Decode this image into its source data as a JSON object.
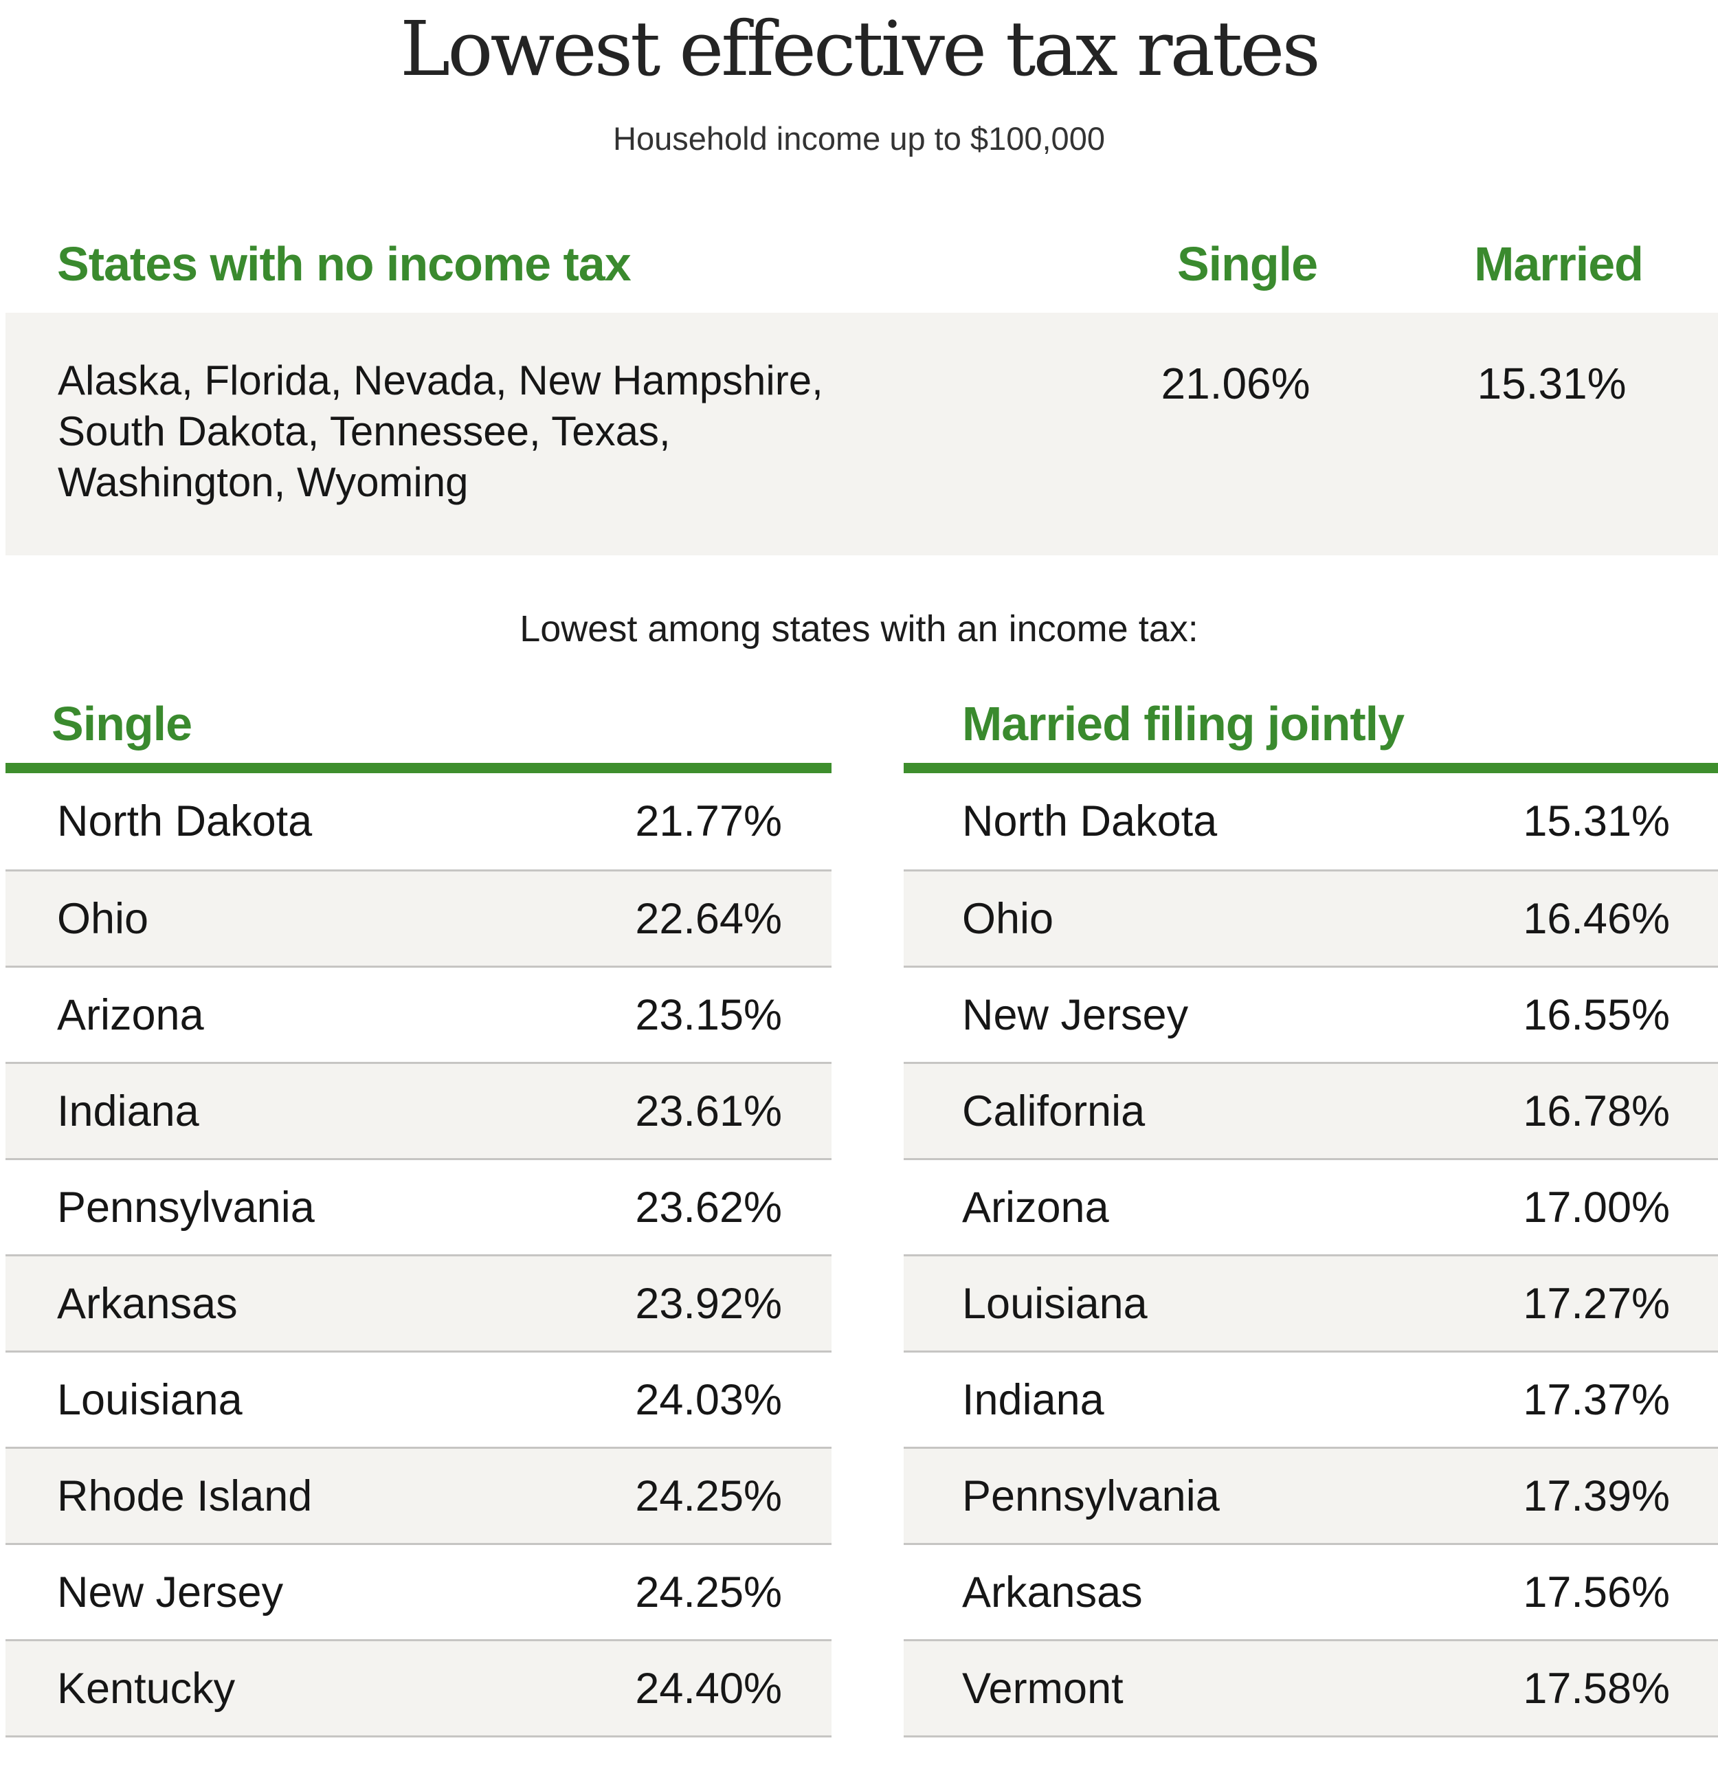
{
  "title": "Lowest effective tax rates",
  "subtitle": "Household income up to $100,000",
  "no_tax_section": {
    "header": "States with no income tax",
    "col_single": "Single",
    "col_married": "Married",
    "states_lines": [
      "Alaska, Florida, Nevada, New Hampshire,",
      "South Dakota, Tennessee, Texas,",
      "Washington, Wyoming"
    ],
    "single_value": "21.06%",
    "married_value": "15.31%"
  },
  "note": "Lowest among states with an income tax:",
  "tables": [
    {
      "header": "Single",
      "rows": [
        [
          "North Dakota",
          "21.77%"
        ],
        [
          "Ohio",
          "22.64%"
        ],
        [
          "Arizona",
          "23.15%"
        ],
        [
          "Indiana",
          "23.61%"
        ],
        [
          "Pennsylvania",
          "23.62%"
        ],
        [
          "Arkansas",
          "23.92%"
        ],
        [
          "Louisiana",
          "24.03%"
        ],
        [
          "Rhode Island",
          "24.25%"
        ],
        [
          "New Jersey",
          "24.25%"
        ],
        [
          "Kentucky",
          "24.40%"
        ]
      ]
    },
    {
      "header": "Married filing jointly",
      "rows": [
        [
          "North Dakota",
          "15.31%"
        ],
        [
          "Ohio",
          "16.46%"
        ],
        [
          "New Jersey",
          "16.55%"
        ],
        [
          "California",
          "16.78%"
        ],
        [
          "Arizona",
          "17.00%"
        ],
        [
          "Louisiana",
          "17.27%"
        ],
        [
          "Indiana",
          "17.37%"
        ],
        [
          "Pennsylvania",
          "17.39%"
        ],
        [
          "Arkansas",
          "17.56%"
        ],
        [
          "Vermont",
          "17.58%"
        ]
      ]
    }
  ],
  "chart_data": {
    "type": "table",
    "title": "Lowest effective tax rates",
    "subtitle": "Household income up to $100,000",
    "sections": [
      {
        "title": "States with no income tax",
        "columns": [
          "Single",
          "Married"
        ],
        "states": "Alaska, Florida, Nevada, New Hampshire, South Dakota, Tennessee, Texas, Washington, Wyoming",
        "values": [
          "21.06%",
          "15.31%"
        ]
      },
      {
        "title": "Single",
        "note": "Lowest among states with an income tax:",
        "rows": [
          [
            "North Dakota",
            "21.77%"
          ],
          [
            "Ohio",
            "22.64%"
          ],
          [
            "Arizona",
            "23.15%"
          ],
          [
            "Indiana",
            "23.61%"
          ],
          [
            "Pennsylvania",
            "23.62%"
          ],
          [
            "Arkansas",
            "23.92%"
          ],
          [
            "Louisiana",
            "24.03%"
          ],
          [
            "Rhode Island",
            "24.25%"
          ],
          [
            "New Jersey",
            "24.25%"
          ],
          [
            "Kentucky",
            "24.40%"
          ]
        ]
      },
      {
        "title": "Married filing jointly",
        "note": "Lowest among states with an income tax:",
        "rows": [
          [
            "North Dakota",
            "15.31%"
          ],
          [
            "Ohio",
            "16.46%"
          ],
          [
            "New Jersey",
            "16.55%"
          ],
          [
            "California",
            "16.78%"
          ],
          [
            "Arizona",
            "17.00%"
          ],
          [
            "Louisiana",
            "17.27%"
          ],
          [
            "Indiana",
            "17.37%"
          ],
          [
            "Pennsylvania",
            "17.39%"
          ],
          [
            "Arkansas",
            "17.56%"
          ],
          [
            "Vermont",
            "17.58%"
          ]
        ]
      }
    ]
  },
  "colors": {
    "green": "#3a8a2e",
    "bar_green": "#3e8e2d",
    "row_shade": "#f4f3f0",
    "separator": "#c6c5c3",
    "text": "#161616"
  }
}
